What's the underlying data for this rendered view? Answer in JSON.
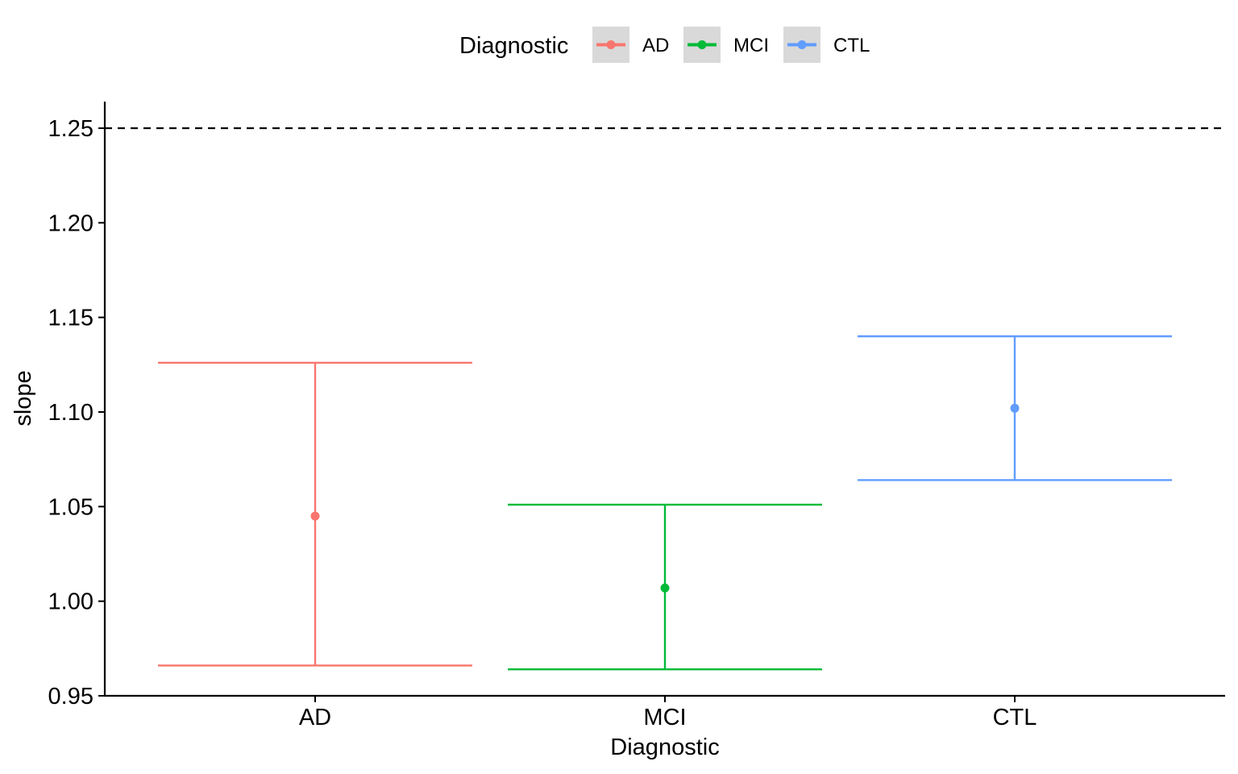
{
  "chart_data": {
    "type": "errorbar",
    "xlabel": "Diagnostic",
    "ylabel": "slope",
    "ylim": [
      0.95,
      1.25
    ],
    "yticks": [
      "0.95",
      "1.00",
      "1.05",
      "1.10",
      "1.15",
      "1.20",
      "1.25"
    ],
    "reference_line": {
      "y": 1.25,
      "style": "dashed"
    },
    "grid": false,
    "legend": {
      "title": "Diagnostic",
      "position": "top",
      "entries": [
        "AD",
        "MCI",
        "CTL"
      ]
    },
    "categories": [
      "AD",
      "MCI",
      "CTL"
    ],
    "series": [
      {
        "name": "AD",
        "mean": 1.045,
        "lower": 0.966,
        "upper": 1.126,
        "color": "#F8766D"
      },
      {
        "name": "MCI",
        "mean": 1.007,
        "lower": 0.964,
        "upper": 1.051,
        "color": "#00BA38"
      },
      {
        "name": "CTL",
        "mean": 1.102,
        "lower": 1.064,
        "upper": 1.14,
        "color": "#619CFF"
      }
    ]
  }
}
